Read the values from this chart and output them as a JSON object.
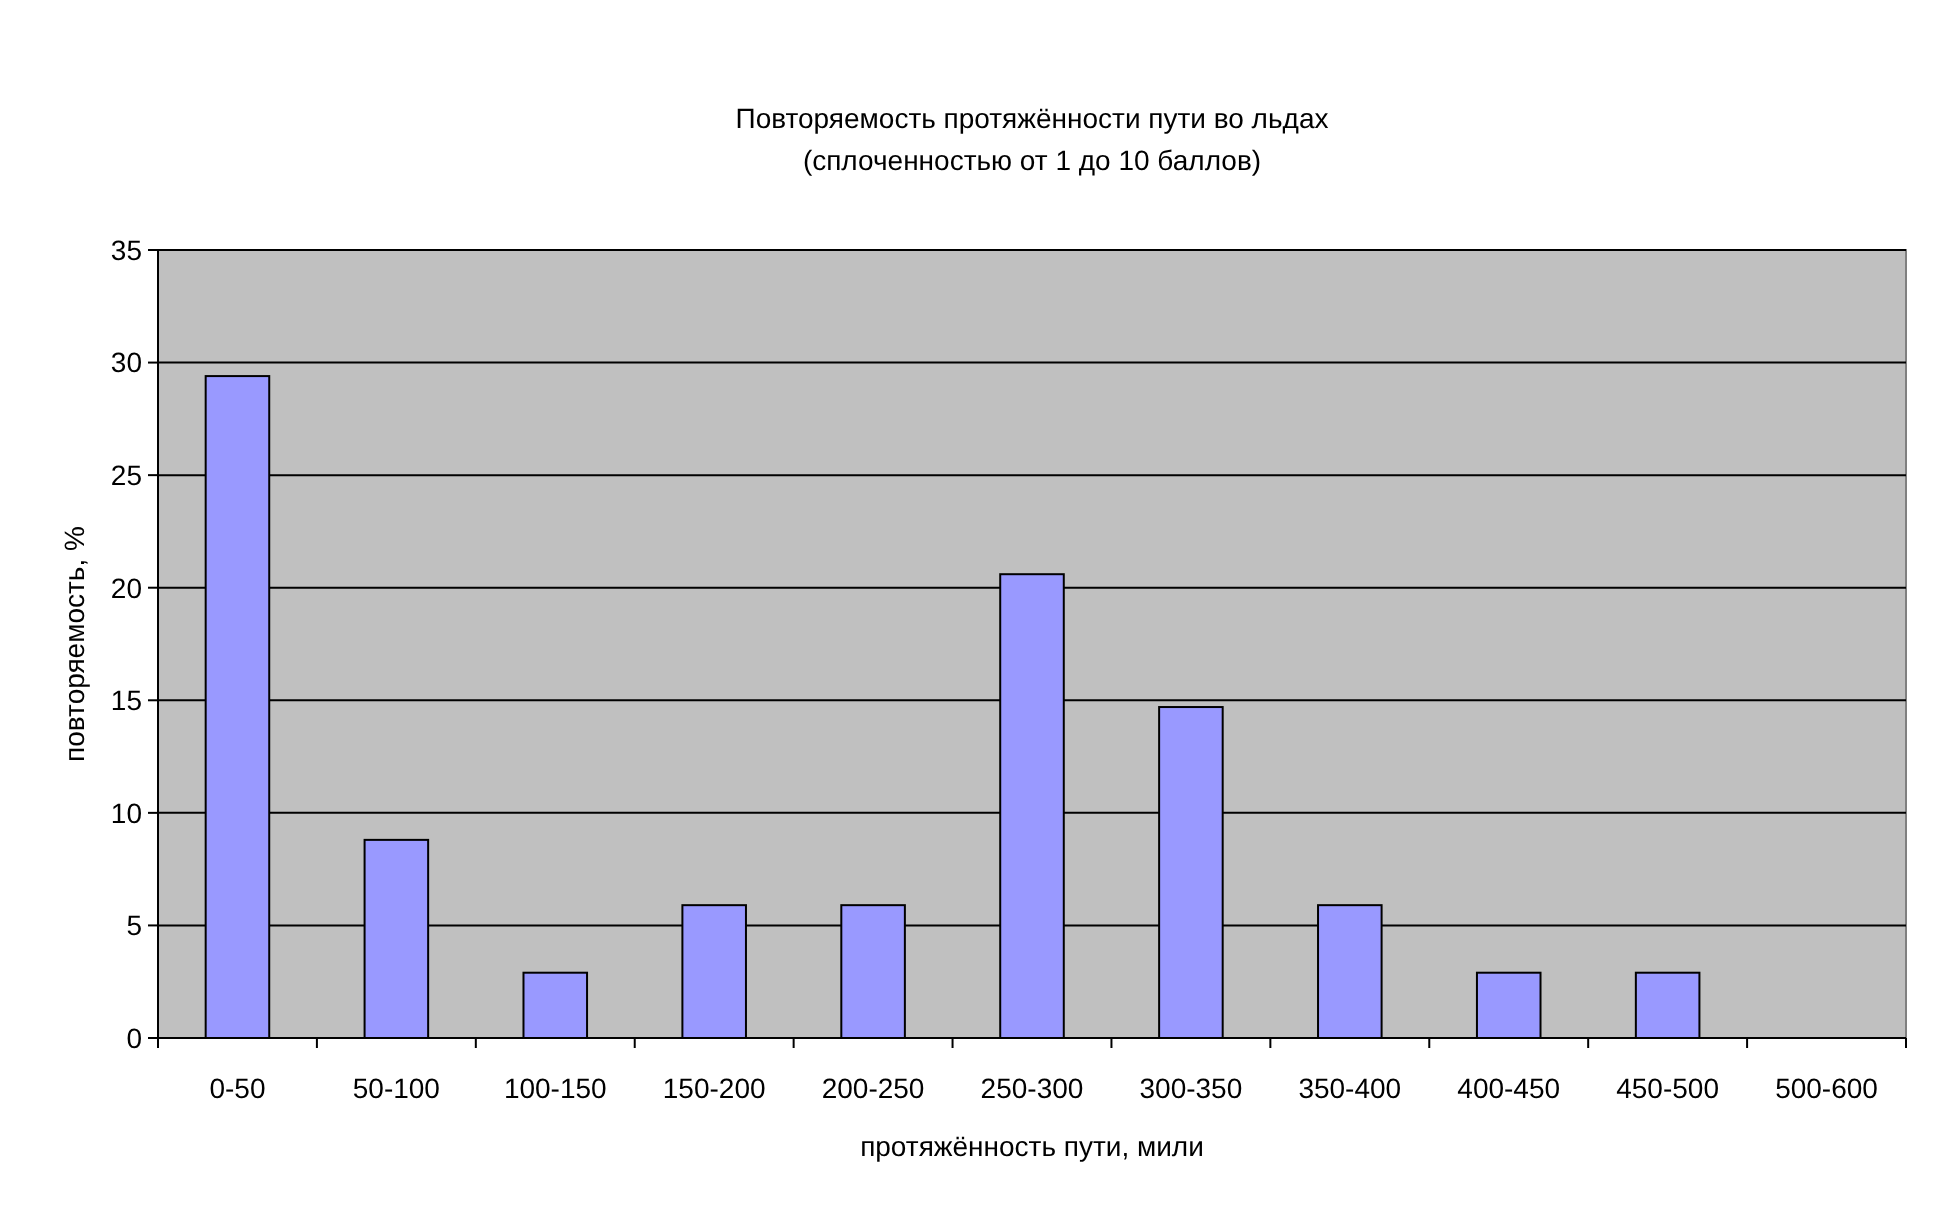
{
  "chart_data": {
    "type": "bar",
    "title": "Повторяемость протяжённости пути во льдах\n(сплоченностью от 1 до 10 баллов)",
    "xlabel": "протяжённость пути, мили",
    "ylabel": "повторяемость, %",
    "categories": [
      "0-50",
      "50-100",
      "100-150",
      "150-200",
      "200-250",
      "250-300",
      "300-350",
      "350-400",
      "400-450",
      "450-500",
      "500-600"
    ],
    "values": [
      29.4,
      8.8,
      2.9,
      5.9,
      5.9,
      20.6,
      14.7,
      5.9,
      2.9,
      2.9,
      0
    ],
    "color": "#9999ff",
    "ylim": [
      0,
      35
    ],
    "yticks": [
      0,
      5,
      10,
      15,
      20,
      25,
      30,
      35
    ],
    "grid": "y"
  }
}
